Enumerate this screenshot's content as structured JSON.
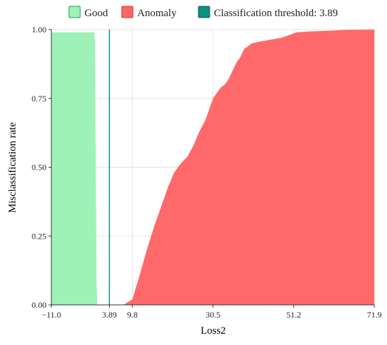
{
  "chart_data": {
    "type": "area",
    "title": "",
    "xlabel": "Loss2",
    "ylabel": "Misclassification rate",
    "xlim": [
      -11.0,
      71.9
    ],
    "ylim": [
      0,
      1.0
    ],
    "x_ticks": [
      -11.0,
      3.89,
      9.8,
      30.5,
      51.2,
      71.9
    ],
    "x_tick_labels": [
      "−11.0",
      "3.89",
      "9.8",
      "30.5",
      "51.2",
      "71.9"
    ],
    "y_ticks": [
      0,
      0.25,
      0.5,
      0.75,
      1.0
    ],
    "y_tick_labels": [
      "0.00",
      "0.25",
      "0.50",
      "0.75",
      "1.00"
    ],
    "grid": true,
    "legend_position": "top",
    "threshold": 3.89,
    "series": [
      {
        "name": "Good",
        "color": "#9ef2b8",
        "x": [
          -11.0,
          0.0,
          0.2,
          0.4,
          0.6,
          0.8
        ],
        "y": [
          0.99,
          0.99,
          0.95,
          0.5,
          0.08,
          0.0
        ]
      },
      {
        "name": "Anomaly",
        "color": "#ff6666",
        "x": [
          7.5,
          9.8,
          11.5,
          13.5,
          15.5,
          17.5,
          19.0,
          20.5,
          22.0,
          24.0,
          25.5,
          27.0,
          28.5,
          29.5,
          30.5,
          31.5,
          32.5,
          33.5,
          34.5,
          35.5,
          36.5,
          37.5,
          38.5,
          39.5,
          40.5,
          42.0,
          44.0,
          46.0,
          48.0,
          50.0,
          52.0,
          55.0,
          60.0,
          65.0,
          71.9
        ],
        "y": [
          0.0,
          0.02,
          0.1,
          0.2,
          0.29,
          0.37,
          0.43,
          0.48,
          0.51,
          0.54,
          0.58,
          0.63,
          0.67,
          0.71,
          0.75,
          0.77,
          0.79,
          0.8,
          0.82,
          0.85,
          0.88,
          0.9,
          0.93,
          0.94,
          0.95,
          0.955,
          0.96,
          0.965,
          0.97,
          0.98,
          0.99,
          0.993,
          0.996,
          0.999,
          1.0
        ]
      }
    ],
    "threshold_series": {
      "name": "Classification threshold: 3.89",
      "color": "#0e8f84"
    }
  }
}
